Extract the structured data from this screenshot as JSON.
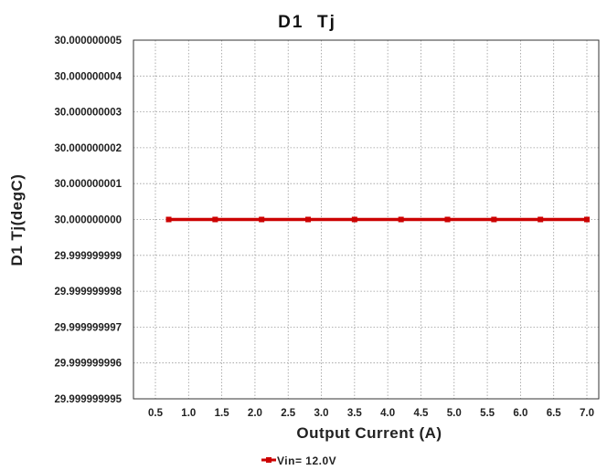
{
  "chart_data": {
    "type": "line",
    "title": "D1  Tj",
    "xlabel": "Output Current (A)",
    "ylabel": "D1 Tj(degC)",
    "x_ticks": [
      "0.5",
      "1.0",
      "1.5",
      "2.0",
      "2.5",
      "3.0",
      "3.5",
      "4.0",
      "4.5",
      "5.0",
      "5.5",
      "6.0",
      "6.5",
      "7.0"
    ],
    "y_ticks": [
      "30.000000005",
      "30.000000004",
      "30.000000003",
      "30.000000002",
      "30.000000001",
      "30.000000000",
      "29.999999999",
      "29.999999998",
      "29.999999997",
      "29.999999996",
      "29.999999995"
    ],
    "xlim": [
      0.35,
      7.2
    ],
    "ylim": [
      29.999999995,
      30.000000005
    ],
    "grid": true,
    "legend_position": "bottom-center",
    "series": [
      {
        "name": "Vin= 12.0V",
        "color": "#cc0000",
        "marker": "square",
        "x": [
          0.7,
          1.4,
          2.1,
          2.8,
          3.5,
          4.2,
          4.9,
          5.6,
          6.3,
          7.0
        ],
        "y": [
          30.0,
          30.0,
          30.0,
          30.0,
          30.0,
          30.0,
          30.0,
          30.0,
          30.0,
          30.0
        ]
      }
    ]
  }
}
